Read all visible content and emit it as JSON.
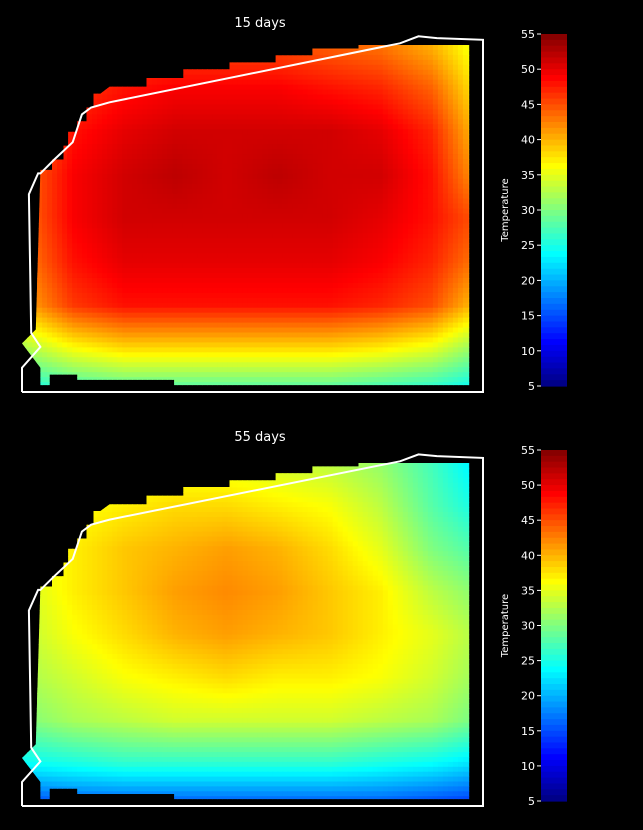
{
  "chart_data": [
    {
      "type": "heatmap",
      "title": "15 days",
      "colorbar": {
        "label": "Temperature",
        "range": [
          5,
          55
        ],
        "ticks": [
          "5",
          "10",
          "15",
          "20",
          "25",
          "30",
          "35",
          "40",
          "45",
          "50",
          "55"
        ],
        "colormap": "jet"
      },
      "field": {
        "description_values": "approximate temperature field sampled on grid rows (top to bottom) and columns (left to right)",
        "rows": [
          [
            38,
            42,
            44,
            45,
            45,
            45,
            44,
            43,
            40,
            34
          ],
          [
            40,
            46,
            48,
            49,
            49,
            49,
            48,
            47,
            44,
            36
          ],
          [
            42,
            48,
            50,
            51,
            51,
            51,
            51,
            50,
            47,
            38
          ],
          [
            43,
            49,
            51,
            52,
            51,
            52,
            51,
            51,
            48,
            40
          ],
          [
            43,
            49,
            51,
            51,
            51,
            51,
            51,
            50,
            48,
            44
          ],
          [
            42,
            48,
            50,
            50,
            50,
            50,
            50,
            49,
            47,
            42
          ],
          [
            40,
            46,
            48,
            48,
            48,
            48,
            48,
            47,
            45,
            38
          ],
          [
            32,
            36,
            38,
            38,
            38,
            38,
            38,
            37,
            35,
            30
          ],
          [
            24,
            26,
            27,
            27,
            27,
            27,
            27,
            26,
            25,
            23
          ]
        ]
      }
    },
    {
      "type": "heatmap",
      "title": "55 days",
      "colorbar": {
        "label": "Temperature",
        "range": [
          5,
          55
        ],
        "ticks": [
          "5",
          "10",
          "15",
          "20",
          "25",
          "30",
          "35",
          "40",
          "45",
          "50",
          "55"
        ],
        "colormap": "jet"
      },
      "field": {
        "description_values": "approximate temperature field sampled on grid rows (top to bottom) and columns (left to right)",
        "rows": [
          [
            32,
            34,
            35,
            35,
            35,
            34,
            33,
            31,
            27,
            22
          ],
          [
            34,
            36,
            37,
            38,
            38,
            37,
            36,
            33,
            28,
            24
          ],
          [
            34,
            37,
            39,
            40,
            41,
            40,
            38,
            35,
            30,
            27
          ],
          [
            34,
            37,
            39,
            41,
            42,
            41,
            39,
            37,
            33,
            30
          ],
          [
            33,
            36,
            38,
            40,
            41,
            40,
            39,
            37,
            35,
            32
          ],
          [
            32,
            34,
            36,
            37,
            38,
            37,
            37,
            36,
            34,
            31
          ],
          [
            30,
            32,
            33,
            34,
            34,
            34,
            34,
            33,
            32,
            29
          ],
          [
            24,
            25,
            26,
            26,
            26,
            26,
            26,
            25,
            24,
            22
          ],
          [
            14,
            15,
            15,
            15,
            15,
            15,
            15,
            15,
            14,
            13
          ]
        ]
      }
    }
  ]
}
